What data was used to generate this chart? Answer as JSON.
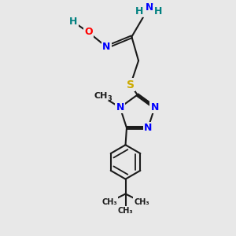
{
  "bg_color": "#e8e8e8",
  "bond_color": "#1a1a1a",
  "N_color": "#0000ff",
  "O_color": "#ff0000",
  "S_color": "#ccaa00",
  "H_color": "#008080",
  "C_color": "#1a1a1a",
  "xlim": [
    0,
    10
  ],
  "ylim": [
    0,
    10
  ]
}
